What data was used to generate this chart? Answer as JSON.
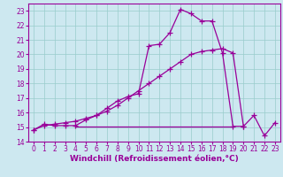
{
  "xlabel": "Windchill (Refroidissement éolien,°C)",
  "background_color": "#cde8f0",
  "line_color": "#990099",
  "grid_color": "#99cccc",
  "xlim": [
    -0.5,
    23.5
  ],
  "ylim": [
    14,
    23.5
  ],
  "x_ticks": [
    0,
    1,
    2,
    3,
    4,
    5,
    6,
    7,
    8,
    9,
    10,
    11,
    12,
    13,
    14,
    15,
    16,
    17,
    18,
    19,
    20,
    21,
    22,
    23
  ],
  "y_ticks": [
    14,
    15,
    16,
    17,
    18,
    19,
    20,
    21,
    22,
    23
  ],
  "curve1_x": [
    0,
    1,
    2,
    3,
    4,
    5,
    6,
    7,
    8,
    9,
    10,
    11,
    12,
    13,
    14,
    15,
    16,
    17,
    18,
    19,
    20,
    21,
    22,
    23
  ],
  "curve1_y": [
    14.8,
    15.2,
    15.1,
    15.1,
    15.1,
    15.5,
    15.8,
    16.3,
    16.8,
    17.1,
    17.3,
    20.6,
    20.7,
    21.5,
    23.1,
    22.8,
    22.3,
    22.3,
    20.1,
    15.05,
    15.05,
    15.8,
    14.4,
    15.3
  ],
  "curve2_x": [
    0,
    1,
    2,
    3,
    4,
    5,
    6,
    7,
    8,
    9,
    10,
    11,
    12,
    13,
    14,
    15,
    16,
    17,
    18,
    19,
    20
  ],
  "curve2_y": [
    14.8,
    15.1,
    15.2,
    15.3,
    15.4,
    15.6,
    15.8,
    16.1,
    16.5,
    17.0,
    17.5,
    18.0,
    18.5,
    19.0,
    19.5,
    20.0,
    20.2,
    20.3,
    20.4,
    20.1,
    15.05
  ],
  "curve3_x": [
    4,
    19
  ],
  "curve3_y": [
    15.05,
    15.05
  ],
  "marker": "+",
  "markersize": 4,
  "linewidth": 0.9,
  "tick_fontsize": 5.5,
  "xlabel_fontsize": 6.5
}
